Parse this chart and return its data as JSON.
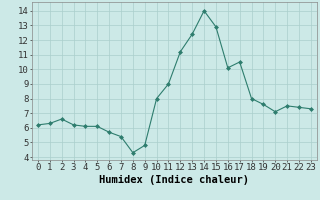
{
  "x": [
    0,
    1,
    2,
    3,
    4,
    5,
    6,
    7,
    8,
    9,
    10,
    11,
    12,
    13,
    14,
    15,
    16,
    17,
    18,
    19,
    20,
    21,
    22,
    23
  ],
  "y": [
    6.2,
    6.3,
    6.6,
    6.2,
    6.1,
    6.1,
    5.7,
    5.4,
    4.3,
    4.8,
    8.0,
    9.0,
    11.2,
    12.4,
    14.0,
    12.9,
    10.1,
    10.5,
    8.0,
    7.6,
    7.1,
    7.5,
    7.4,
    7.3
  ],
  "xlabel": "Humidex (Indice chaleur)",
  "xlim": [
    -0.5,
    23.5
  ],
  "ylim": [
    3.8,
    14.6
  ],
  "yticks": [
    4,
    5,
    6,
    7,
    8,
    9,
    10,
    11,
    12,
    13,
    14
  ],
  "xticks": [
    0,
    1,
    2,
    3,
    4,
    5,
    6,
    7,
    8,
    9,
    10,
    11,
    12,
    13,
    14,
    15,
    16,
    17,
    18,
    19,
    20,
    21,
    22,
    23
  ],
  "xtick_labels": [
    "0",
    "1",
    "2",
    "3",
    "4",
    "5",
    "6",
    "7",
    "8",
    "9",
    "10",
    "11",
    "12",
    "13",
    "14",
    "15",
    "16",
    "17",
    "18",
    "19",
    "20",
    "21",
    "22",
    "23"
  ],
  "line_color": "#2e7d6e",
  "marker": "D",
  "marker_size": 2.0,
  "line_width": 0.8,
  "background_color": "#cce9e7",
  "grid_color": "#aacfcc",
  "xlabel_fontsize": 7.5,
  "tick_fontsize": 6.5
}
